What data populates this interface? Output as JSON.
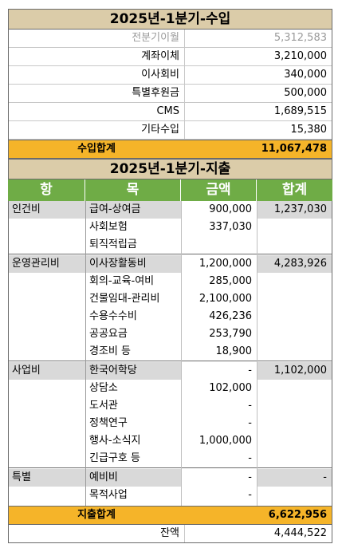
{
  "income": {
    "title": "2025년-1분기-수입",
    "rows": [
      {
        "label": "전분기이월",
        "value": "5,312,583"
      },
      {
        "label": "계좌이체",
        "value": "3,210,000"
      },
      {
        "label": "이사회비",
        "value": "340,000"
      },
      {
        "label": "특별후원금",
        "value": "500,000"
      },
      {
        "label": "CMS",
        "value": "1,689,515"
      },
      {
        "label": "기타수입",
        "value": "15,380"
      }
    ],
    "total_label": "수입합계",
    "total_value": "11,067,478"
  },
  "expense": {
    "title": "2025년-1분기-지출",
    "headers": {
      "hang": "항",
      "mok": "목",
      "amount": "금액",
      "sum": "합계"
    },
    "groups": [
      {
        "name": "인건비",
        "sum": "1,237,030",
        "items": [
          {
            "mok": "급여-상여금",
            "amount": "900,000"
          },
          {
            "mok": "사회보험",
            "amount": "337,030"
          },
          {
            "mok": "퇴직적립금",
            "amount": ""
          }
        ]
      },
      {
        "name": "운영관리비",
        "sum": "4,283,926",
        "items": [
          {
            "mok": "이사장활동비",
            "amount": "1,200,000"
          },
          {
            "mok": "회의-교육-여비",
            "amount": "285,000"
          },
          {
            "mok": "건물임대-관리비",
            "amount": "2,100,000"
          },
          {
            "mok": "수용수수비",
            "amount": "426,236"
          },
          {
            "mok": "공공요금",
            "amount": "253,790"
          },
          {
            "mok": "경조비 등",
            "amount": "18,900"
          }
        ]
      },
      {
        "name": "사업비",
        "sum": "1,102,000",
        "items": [
          {
            "mok": "한국어학당",
            "amount": "-"
          },
          {
            "mok": "상담소",
            "amount": "102,000"
          },
          {
            "mok": "도서관",
            "amount": "-"
          },
          {
            "mok": "정책연구",
            "amount": "-"
          },
          {
            "mok": "행사-소식지",
            "amount": "1,000,000"
          },
          {
            "mok": "긴급구호 등",
            "amount": "-"
          }
        ]
      },
      {
        "name": "특별",
        "sum": "-",
        "items": [
          {
            "mok": "예비비",
            "amount": "-"
          },
          {
            "mok": "목적사업",
            "amount": "-"
          }
        ]
      }
    ],
    "total_label": "지출합계",
    "total_value": "6,622,956"
  },
  "balance": {
    "label": "잔액",
    "value": "4,444,522"
  }
}
